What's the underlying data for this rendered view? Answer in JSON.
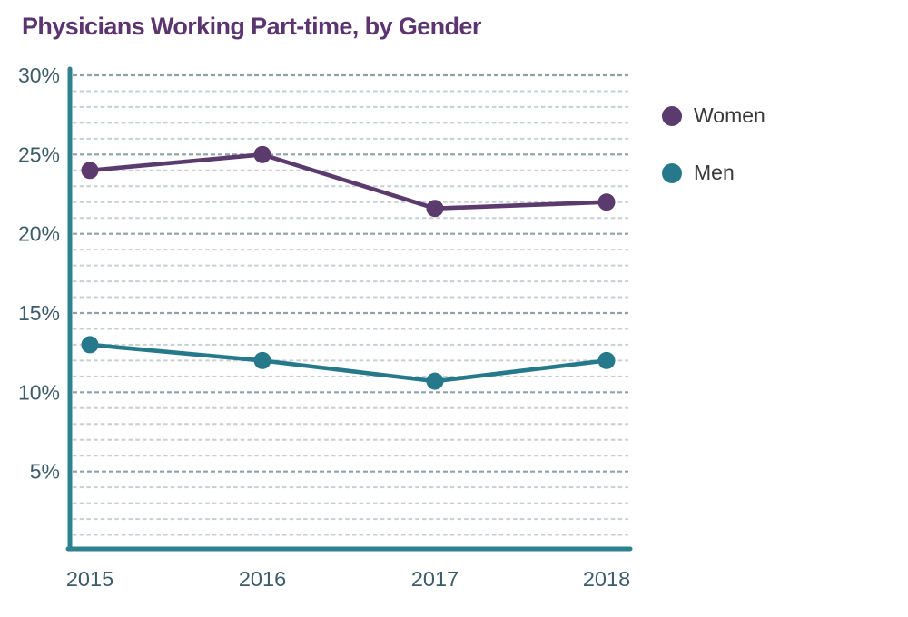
{
  "title": "Physicians Working Part-time, by Gender",
  "title_color": "#5c3570",
  "legend": {
    "position": "right",
    "items": [
      {
        "label": "Women",
        "color": "#5b3a6d"
      },
      {
        "label": "Men",
        "color": "#25798b"
      }
    ]
  },
  "chart_data": {
    "type": "line",
    "title": "Physicians Working Part-time, by Gender",
    "categories": [
      "2015",
      "2016",
      "2017",
      "2018"
    ],
    "series": [
      {
        "name": "Women",
        "color": "#5b3a6d",
        "values": [
          24,
          25,
          21.6,
          22
        ]
      },
      {
        "name": "Men",
        "color": "#25798b",
        "values": [
          13,
          12,
          10.7,
          12
        ]
      }
    ],
    "xlabel": "",
    "ylabel": "",
    "ylim": [
      0,
      30
    ],
    "y_major_ticks": [
      5,
      10,
      15,
      20,
      25,
      30
    ],
    "y_tick_labels": [
      "5%",
      "10%",
      "15%",
      "20%",
      "25%",
      "30%"
    ],
    "y_minor_step": 1,
    "grid": "horizontal-dashed",
    "legend_position": "right",
    "axis_color": "#2e818e",
    "tick_label_color": "#3d5c6a",
    "major_grid_color": "#8fa1a9",
    "minor_grid_color": "#c7cfd4",
    "marker": "circle"
  }
}
